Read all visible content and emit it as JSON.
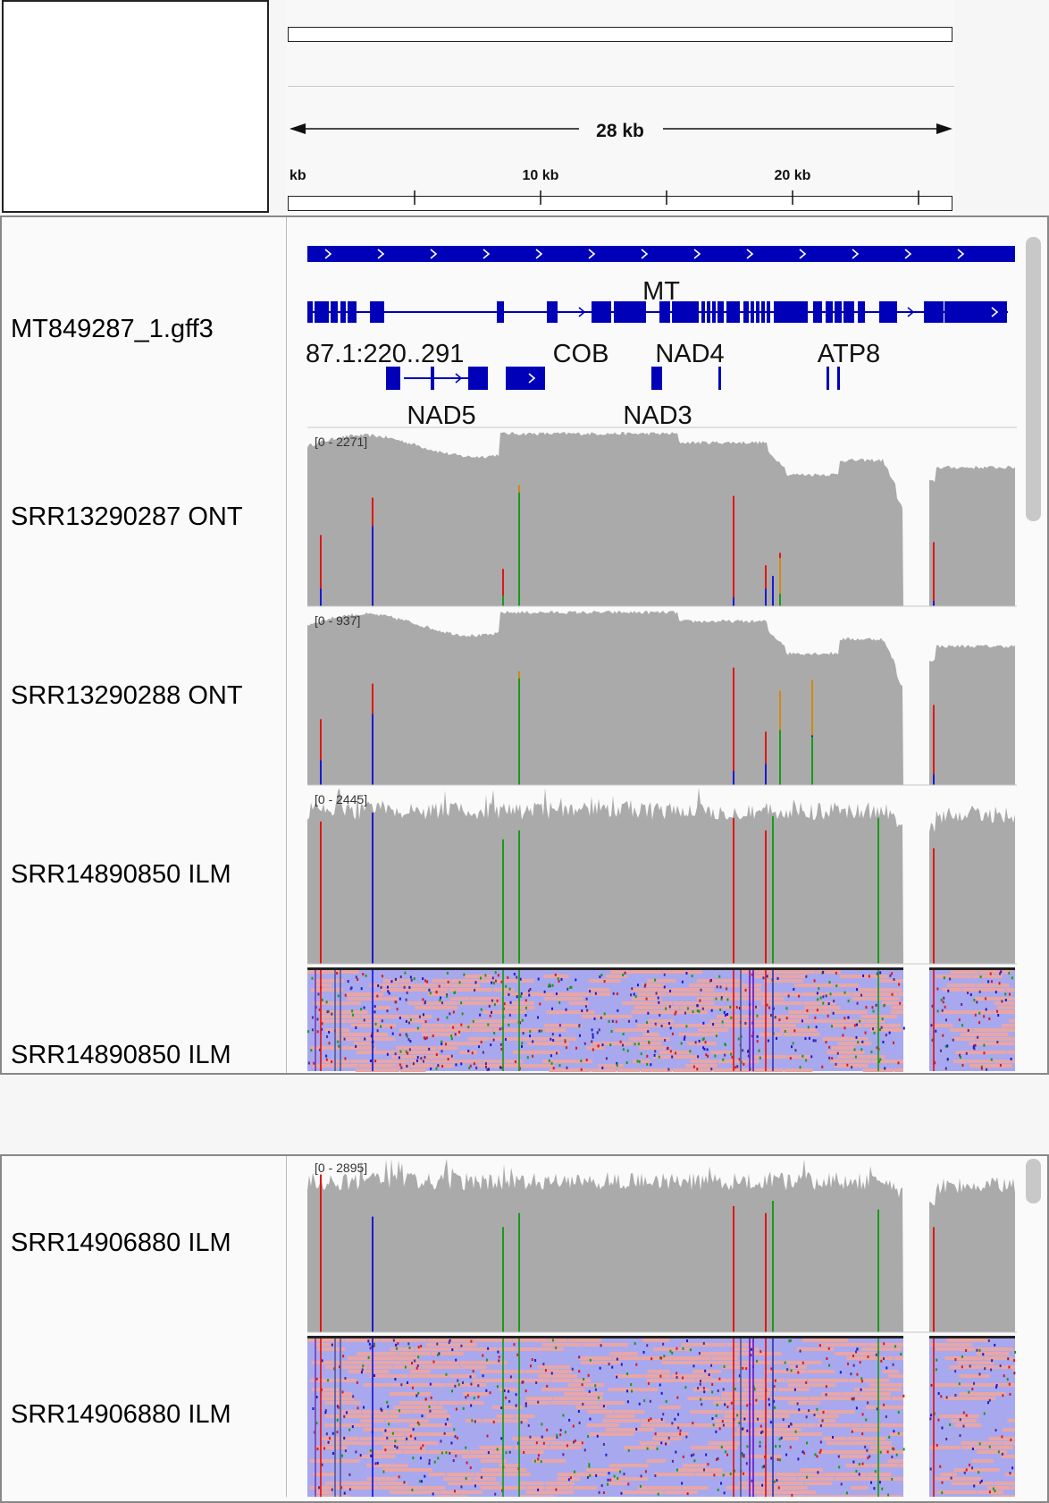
{
  "ruler": {
    "span_label": "28 kb",
    "ticks": [
      {
        "label": "kb",
        "pos_kb": 0
      },
      {
        "label": "",
        "pos_kb": 5
      },
      {
        "label": "10 kb",
        "pos_kb": 10
      },
      {
        "label": "",
        "pos_kb": 15
      },
      {
        "label": "20 kb",
        "pos_kb": 20
      },
      {
        "label": "",
        "pos_kb": 25
      }
    ]
  },
  "annotation_track": {
    "name": "MT849287_1.gff3",
    "labels": {
      "mt": "MT",
      "left": "87.1:220..291",
      "cob": "COB",
      "nad4": "NAD4",
      "atp8": "ATP8",
      "nad5": "NAD5",
      "nad3": "NAD3"
    },
    "color": "#0000b8"
  },
  "tracks": [
    {
      "name": "SRR13290287 ONT",
      "range": "[0 - 2271]",
      "kind": "coverage-smooth"
    },
    {
      "name": "SRR13290288 ONT",
      "range": "[0 - 937]",
      "kind": "coverage-smooth"
    },
    {
      "name": "SRR14890850 ILM",
      "range": "[0 - 2445]",
      "kind": "coverage-noisy"
    },
    {
      "name": "SRR14890850 ILM",
      "range": "",
      "kind": "alignment"
    }
  ],
  "tracks_panel2": [
    {
      "name": "SRR14906880 ILM",
      "range": "[0 - 2895]",
      "kind": "coverage-noisy"
    },
    {
      "name": "SRR14906880 ILM",
      "range": "",
      "kind": "alignment"
    }
  ],
  "colors": {
    "coverage": "#aaaaaa",
    "mismatch_A": "#1a9a1a",
    "mismatch_C": "#1a1ad2",
    "mismatch_T": "#e01616",
    "mismatch_G": "#d08a10",
    "read_fwd": "#e8a6a6",
    "read_rev": "#a8a8ee",
    "feature": "#0000b8"
  }
}
